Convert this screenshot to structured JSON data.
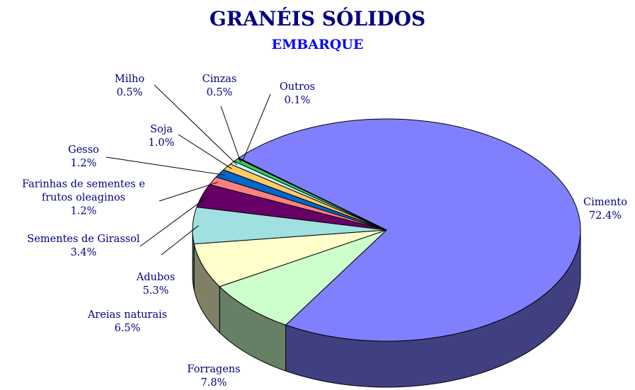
{
  "chart_data": {
    "type": "pie",
    "title": "GRANÉIS SÓLIDOS",
    "subtitle": "EMBARQUE",
    "categories": [
      "Cimento",
      "Forragens",
      "Areias naturais",
      "Adubos",
      "Sementes de Girassol",
      "Farinhas de sementes e frutos oleaginos",
      "Gesso",
      "Soja",
      "Milho",
      "Cinzas",
      "Outros"
    ],
    "values": [
      72.4,
      7.8,
      6.5,
      5.3,
      3.4,
      1.2,
      1.2,
      1.0,
      0.5,
      0.5,
      0.1
    ],
    "value_labels": [
      "72.4%",
      "7.8%",
      "6.5%",
      "5.3%",
      "3.4%",
      "1.2%",
      "1.2%",
      "1.0%",
      "0.5%",
      "0.5%",
      "0.1%"
    ],
    "colors": [
      "#8080ff",
      "#ccffcc",
      "#ffffcc",
      "#a0e0e0",
      "#660066",
      "#ff8080",
      "#0066cc",
      "#ffcc66",
      "#ccffff",
      "#33cc66",
      "#ff00ff"
    ]
  }
}
